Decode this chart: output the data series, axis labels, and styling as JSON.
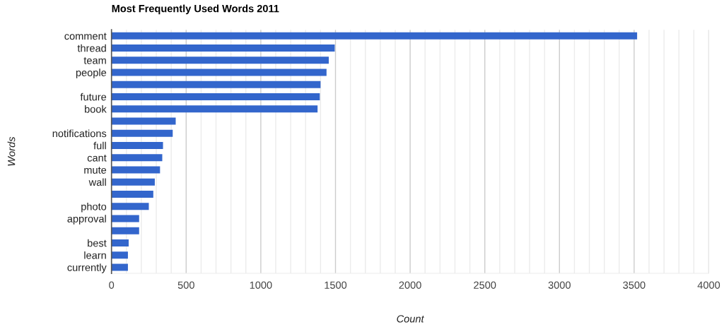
{
  "chart_data": {
    "type": "bar",
    "orientation": "horizontal",
    "title": "Most Frequently Used Words 2011",
    "xlabel": "Count",
    "ylabel": "Words",
    "categories": [
      "comment",
      "thread",
      "team",
      "people",
      null,
      "future",
      "book",
      null,
      "notifications",
      "full",
      "cant",
      "mute",
      "wall",
      null,
      "photo",
      "approval",
      null,
      "best",
      "learn",
      "currently"
    ],
    "values": [
      3520,
      1495,
      1455,
      1440,
      1400,
      1395,
      1380,
      430,
      410,
      345,
      340,
      325,
      290,
      280,
      250,
      185,
      185,
      115,
      110,
      110
    ],
    "color": "#3366cc",
    "xlim": [
      0,
      4000
    ],
    "xticks": [
      0,
      {
        "value": 100,
        "label": null
      },
      {
        "value": 200,
        "label": null
      },
      {
        "value": 300,
        "label": null
      },
      {
        "value": 400,
        "label": null
      },
      500,
      {
        "value": 600,
        "label": null
      },
      {
        "value": 700,
        "label": null
      },
      {
        "value": 800,
        "label": null
      },
      {
        "value": 900,
        "label": null
      },
      1000,
      {
        "value": 1100,
        "label": null
      },
      {
        "value": 1200,
        "label": null
      },
      {
        "value": 1300,
        "label": null
      },
      {
        "value": 1400,
        "label": null
      },
      1500,
      {
        "value": 1600,
        "label": null
      },
      {
        "value": 1700,
        "label": null
      },
      {
        "value": 1800,
        "label": null
      },
      {
        "value": 1900,
        "label": null
      },
      2000,
      {
        "value": 2100,
        "label": null
      },
      {
        "value": 2200,
        "label": null
      },
      {
        "value": 2300,
        "label": null
      },
      {
        "value": 2400,
        "label": null
      },
      2500,
      {
        "value": 2600,
        "label": null
      },
      {
        "value": 2700,
        "label": null
      },
      {
        "value": 2800,
        "label": null
      },
      {
        "value": 2900,
        "label": null
      },
      3000,
      {
        "value": 3100,
        "label": null
      },
      {
        "value": 3200,
        "label": null
      },
      {
        "value": 3300,
        "label": null
      },
      {
        "value": 3400,
        "label": null
      },
      3500,
      {
        "value": 3600,
        "label": null
      },
      {
        "value": 3700,
        "label": null
      },
      {
        "value": 3800,
        "label": null
      },
      {
        "value": 3900,
        "label": null
      },
      4000
    ],
    "grid": "x"
  }
}
